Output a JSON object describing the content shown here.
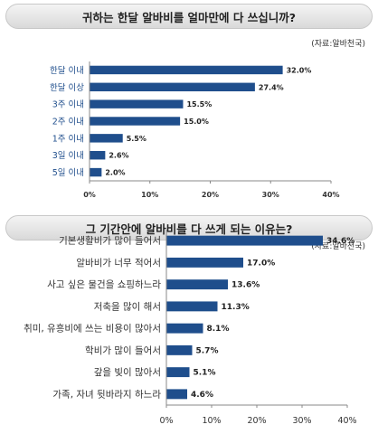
{
  "chart_data": [
    {
      "type": "bar",
      "orientation": "horizontal",
      "title": "귀하는 한달 알바비를 얼마만에 다 쓰십니까?",
      "source": "(자료:알바천국)",
      "categories": [
        "한달 이내",
        "한달 이상",
        "3주 이내",
        "2주 이내",
        "1주 이내",
        "3일 이내",
        "5일 이내"
      ],
      "values": [
        32.0,
        27.4,
        15.5,
        15.0,
        5.5,
        2.6,
        2.0
      ],
      "value_labels": [
        "32.0%",
        "27.4%",
        "15.5%",
        "15.0%",
        "5.5%",
        "2.6%",
        "2.0%"
      ],
      "xlim": [
        0,
        40
      ],
      "ticks": [
        "0%",
        "10%",
        "20%",
        "30%",
        "40%"
      ],
      "bar_color": "#1f4e8c"
    },
    {
      "type": "bar",
      "orientation": "horizontal",
      "title": "그 기간안에 알바비를 다 쓰게 되는 이유는?",
      "source": "(자료:알바천국)",
      "categories": [
        "기본생활비가 많이 들어서",
        "알바비가 너무 적어서",
        "사고 싶은 물건을 쇼핑하느라",
        "저축을 많이 해서",
        "취미, 유흥비에 쓰는 비용이 많아서",
        "학비가 많이 들어서",
        "갚을 빚이 많아서",
        "가족, 자녀 뒷바라지 하느라"
      ],
      "values": [
        34.6,
        17.0,
        13.6,
        11.3,
        8.1,
        5.7,
        5.1,
        4.6
      ],
      "value_labels": [
        "34.6%",
        "17.0%",
        "13.6%",
        "11.3%",
        "8.1%",
        "5.7%",
        "5.1%",
        "4.6%"
      ],
      "xlim": [
        0,
        40
      ],
      "ticks": [
        "0%",
        "10%",
        "20%",
        "30%",
        "40%"
      ],
      "bar_color": "#1f4e8c"
    }
  ]
}
